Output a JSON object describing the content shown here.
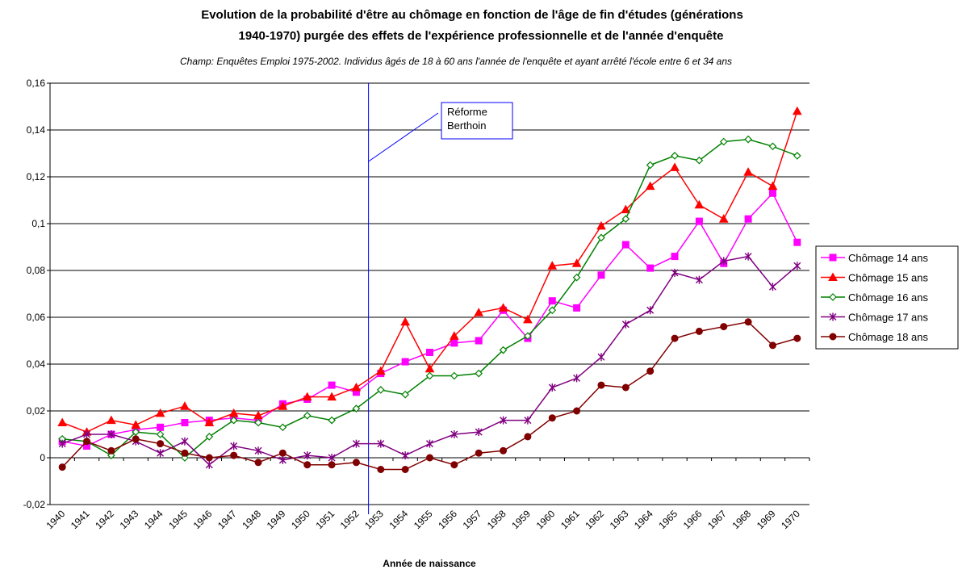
{
  "chart_data": {
    "type": "line",
    "title": [
      "Evolution  de la probabilité d'être au chômage en fonction de l'âge de fin d'études (générations",
      "1940-1970) purgée des effets de l'expérience professionnelle et de l'année d'enquête"
    ],
    "subtitle": "Champ: Enquêtes Emploi 1975-2002. Individus âgés de 18 à 60 ans l'année de l'enquête et ayant arrêté l'école entre 6 et 34 ans",
    "x_label": "Année de naissance",
    "annotation": [
      "Réforme",
      "Berthoin"
    ],
    "categories": [
      "1940",
      "1941",
      "1942",
      "1943",
      "1944",
      "1945",
      "1946",
      "1947",
      "1948",
      "1949",
      "1950",
      "1951",
      "1952",
      "1953",
      "1954",
      "1955",
      "1956",
      "1957",
      "1958",
      "1959",
      "1960",
      "1961",
      "1962",
      "1963",
      "1964",
      "1965",
      "1966",
      "1967",
      "1968",
      "1969",
      "1970"
    ],
    "series": [
      {
        "name": "Chômage 14 ans",
        "color": "#ff00ff",
        "marker": "square",
        "values": [
          0.007,
          0.005,
          0.01,
          0.012,
          0.013,
          0.015,
          0.016,
          0.017,
          0.016,
          0.023,
          0.025,
          0.031,
          0.028,
          0.036,
          0.041,
          0.045,
          0.049,
          0.05,
          0.063,
          0.051,
          0.067,
          0.064,
          0.078,
          0.091,
          0.081,
          0.086,
          0.101,
          0.083,
          0.102,
          0.113,
          0.092
        ]
      },
      {
        "name": "Chômage 15 ans",
        "color": "#ff0000",
        "marker": "triangle",
        "values": [
          0.015,
          0.011,
          0.016,
          0.014,
          0.019,
          0.022,
          0.015,
          0.019,
          0.018,
          0.022,
          0.026,
          0.026,
          0.03,
          0.037,
          0.058,
          0.038,
          0.052,
          0.062,
          0.064,
          0.059,
          0.082,
          0.083,
          0.099,
          0.106,
          0.116,
          0.124,
          0.108,
          0.102,
          0.122,
          0.116,
          0.148
        ]
      },
      {
        "name": "Chômage 16 ans",
        "color": "#008000",
        "marker": "diamond",
        "values": [
          0.008,
          0.007,
          0.001,
          0.011,
          0.01,
          0.0,
          0.009,
          0.016,
          0.015,
          0.013,
          0.018,
          0.016,
          0.021,
          0.029,
          0.027,
          0.035,
          0.035,
          0.036,
          0.046,
          0.052,
          0.063,
          0.077,
          0.094,
          0.102,
          0.125,
          0.129,
          0.127,
          0.135,
          0.136,
          0.133,
          0.129
        ]
      },
      {
        "name": "Chômage 17 ans",
        "color": "#800080",
        "marker": "star",
        "values": [
          0.006,
          0.01,
          0.01,
          0.007,
          0.002,
          0.007,
          -0.003,
          0.005,
          0.003,
          -0.001,
          0.001,
          0.0,
          0.006,
          0.006,
          0.001,
          0.006,
          0.01,
          0.011,
          0.016,
          0.016,
          0.03,
          0.034,
          0.043,
          0.057,
          0.063,
          0.079,
          0.076,
          0.084,
          0.086,
          0.073,
          0.082
        ]
      },
      {
        "name": "Chômage 18 ans",
        "color": "#800000",
        "marker": "circle",
        "values": [
          -0.004,
          0.007,
          0.003,
          0.008,
          0.006,
          0.002,
          0.0,
          0.001,
          -0.002,
          0.002,
          -0.003,
          -0.003,
          -0.002,
          -0.005,
          -0.005,
          0.0,
          -0.003,
          0.002,
          0.003,
          0.009,
          0.017,
          0.02,
          0.031,
          0.03,
          0.037,
          0.051,
          0.054,
          0.056,
          0.058,
          0.048,
          0.051
        ]
      }
    ],
    "ylim": [
      -0.02,
      0.16
    ],
    "yticks": [
      {
        "value": -0.02,
        "label": "-0,02"
      },
      0,
      {
        "value": 0.02,
        "label": "0,02"
      },
      {
        "value": 0.04,
        "label": "0,04"
      },
      {
        "value": 0.06,
        "label": "0,06"
      },
      {
        "value": 0.08,
        "label": "0,08"
      },
      {
        "value": 0.1,
        "label": "0,1"
      },
      {
        "value": 0.12,
        "label": "0,12"
      },
      {
        "value": 0.14,
        "label": "0,14"
      },
      {
        "value": 0.16,
        "label": "0,16"
      }
    ],
    "grid": true,
    "legend": "right"
  }
}
